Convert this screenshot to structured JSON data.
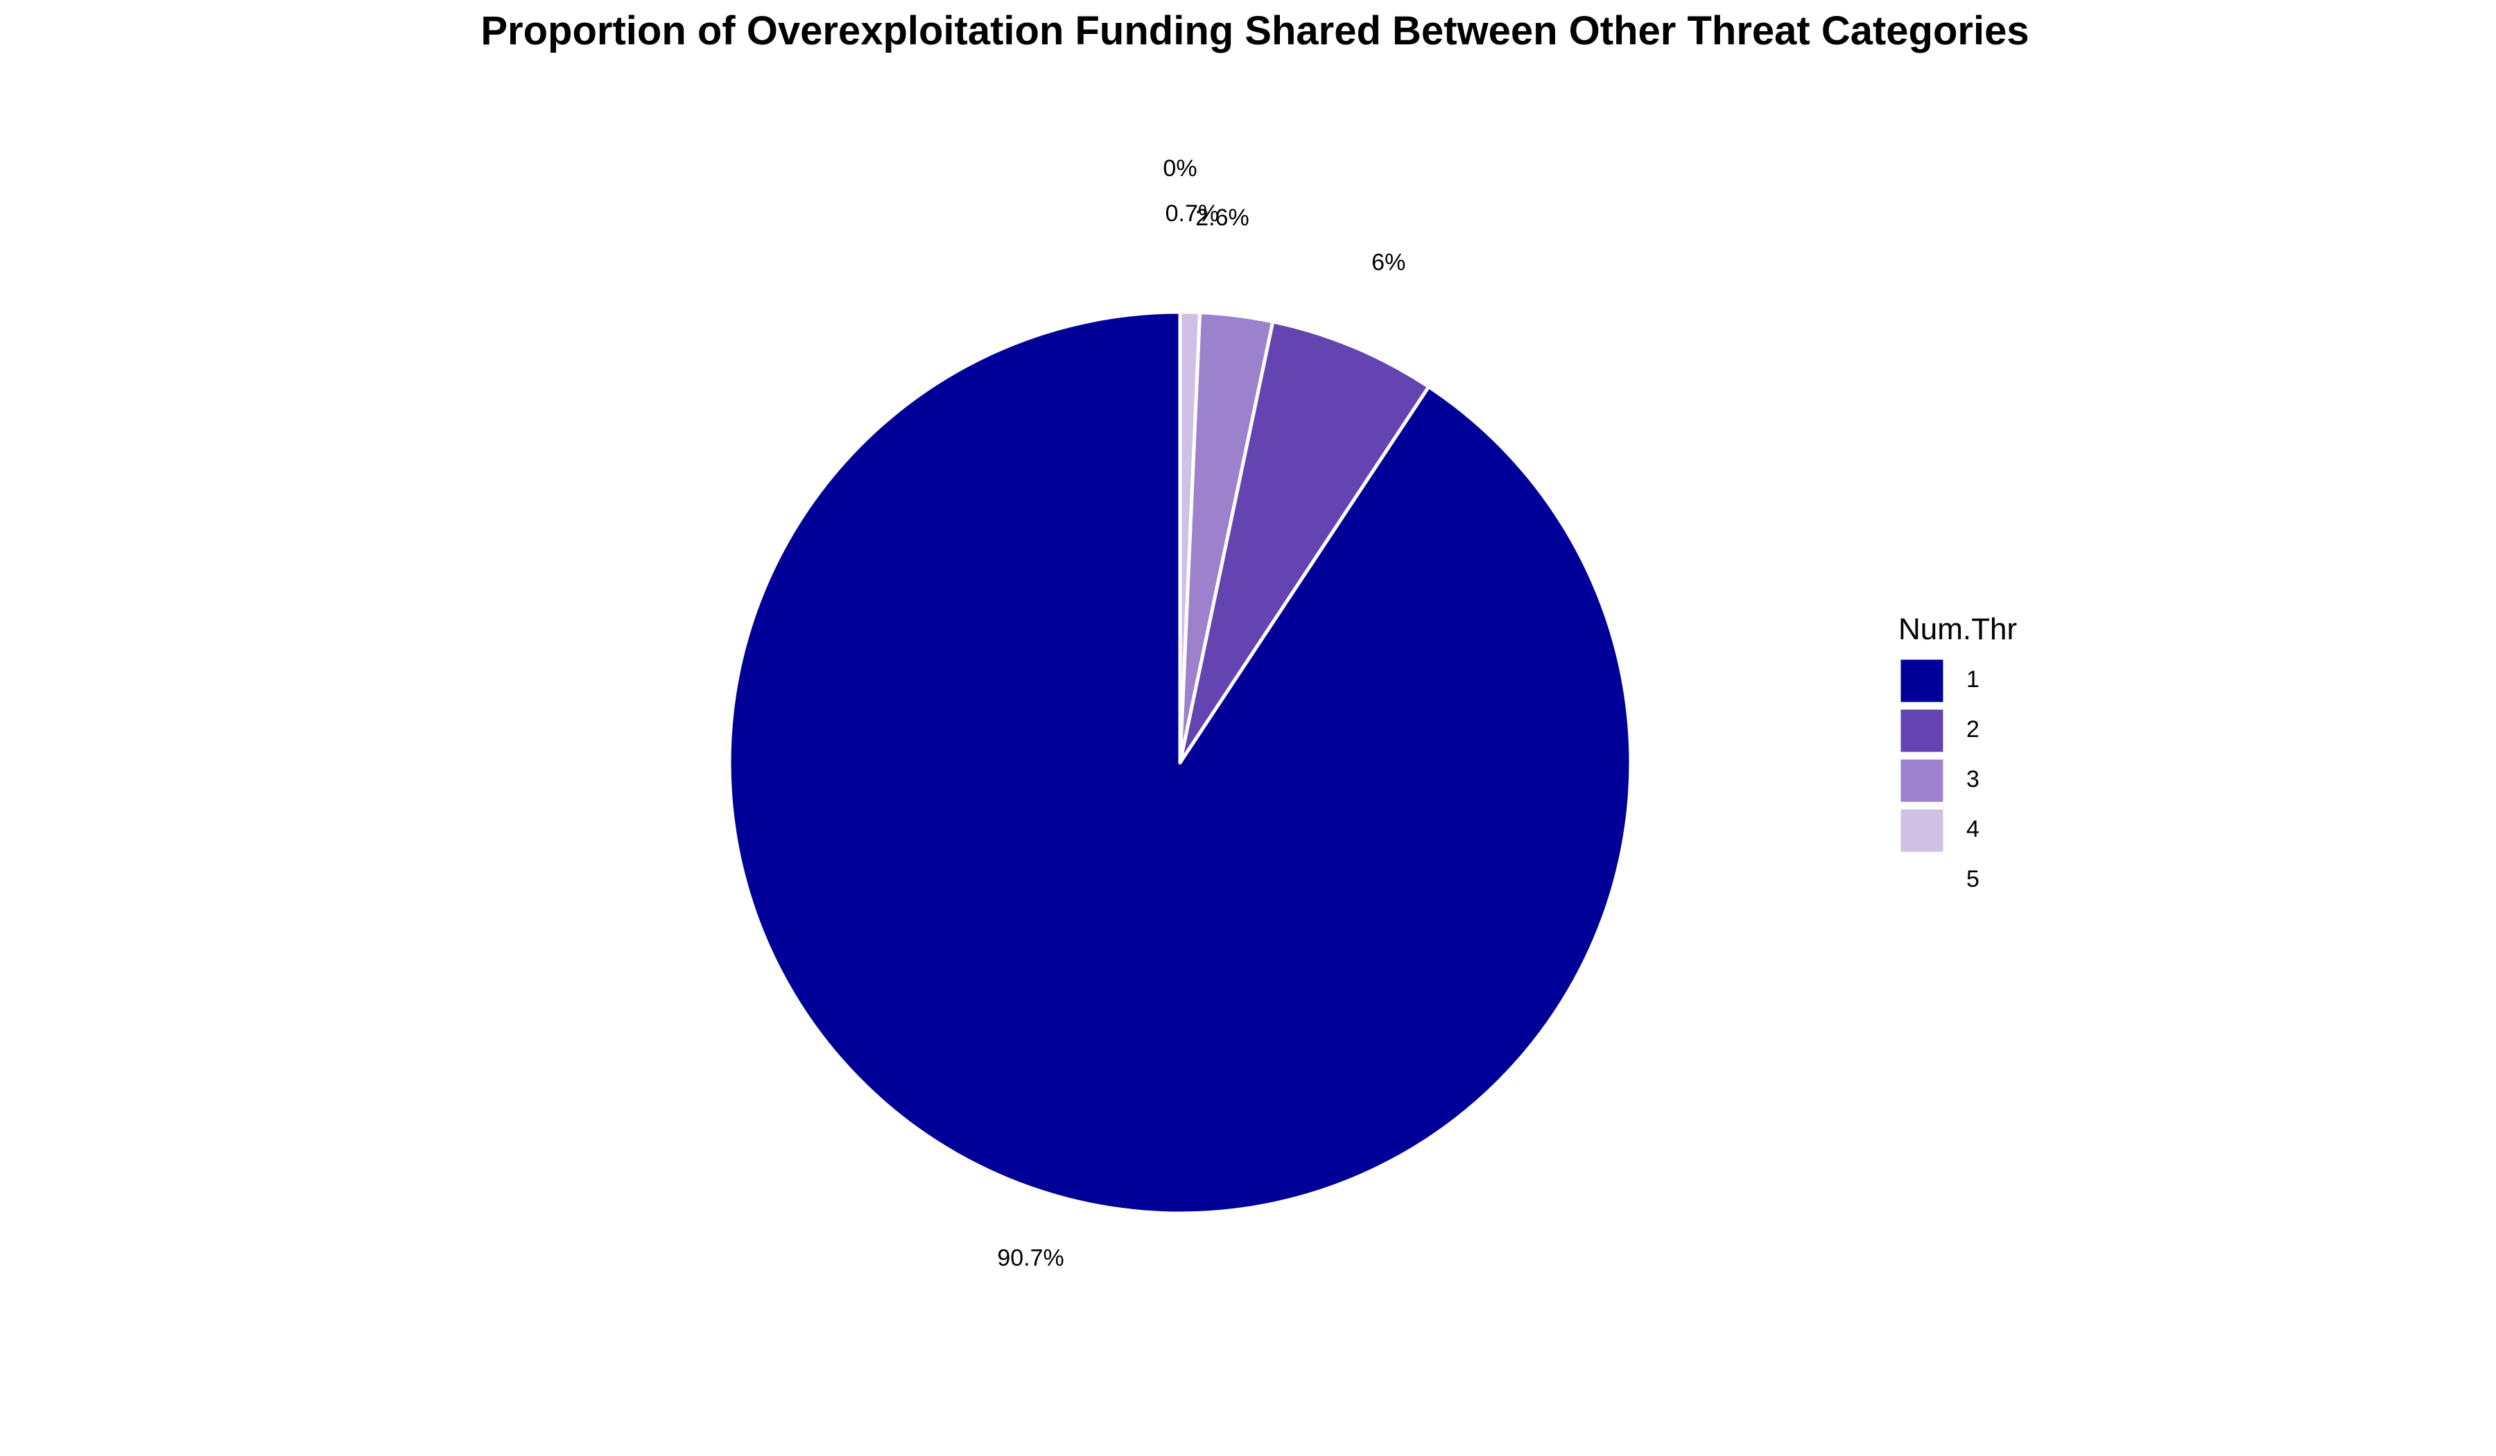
{
  "chart_data": {
    "type": "pie",
    "title": "Proportion of Overexploitation Funding Shared Between Other Threat Categories",
    "legend_title": "Num.Thr",
    "legend_position": "right",
    "categories": [
      "1",
      "2",
      "3",
      "4",
      "5"
    ],
    "values": [
      90.7,
      6,
      2.6,
      0.7,
      0
    ],
    "labels": [
      "90.7%",
      "6%",
      "2.6%",
      "0.7%",
      "0%"
    ],
    "colors": [
      "#000099",
      "#6344b0",
      "#9c82cc",
      "#cfc0e6",
      "#ffffff"
    ],
    "slice_border_color": "#ffffff",
    "direction": "counterclockwise",
    "start": "top"
  }
}
